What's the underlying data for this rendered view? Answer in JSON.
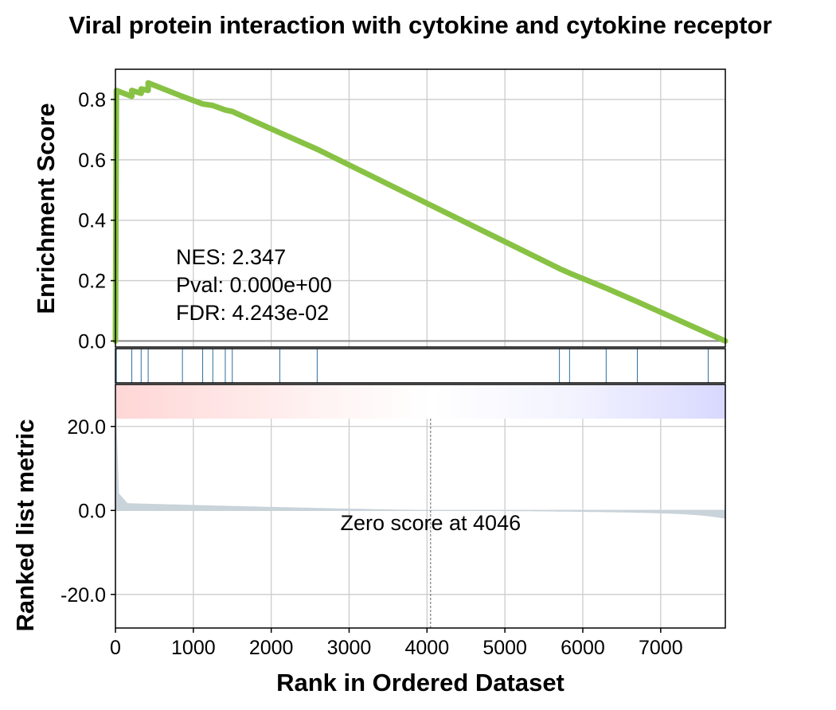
{
  "chart_data": {
    "type": "line",
    "title": "Viral protein interaction with cytokine and cytokine receptor",
    "xlabel": "Rank in Ordered Dataset",
    "ylabel_top": "Enrichment Score",
    "ylabel_bottom": "Ranked list metric",
    "xlim": [
      0,
      7830
    ],
    "xticks": [
      0,
      1000,
      2000,
      3000,
      4000,
      5000,
      6000,
      7000
    ],
    "xtick_labels": [
      "0",
      "1000",
      "2000",
      "3000",
      "4000",
      "5000",
      "6000",
      "7000"
    ],
    "es_ylim": [
      -0.02,
      0.9
    ],
    "es_yticks": [
      0.0,
      0.2,
      0.4,
      0.6,
      0.8
    ],
    "es_ytick_labels": [
      "0.0",
      "0.2",
      "0.4",
      "0.6",
      "0.8"
    ],
    "metric_ylim": [
      -28,
      30
    ],
    "metric_yticks": [
      -20,
      0,
      20
    ],
    "metric_ytick_labels": [
      "-20.0",
      "0.0",
      "20.0"
    ],
    "grid": true,
    "line_color": "#88c244",
    "hit_color": "#2b6f9e",
    "fill_color": "#c9d3da",
    "stats": {
      "nes": "NES: 2.347",
      "pval": "Pval: 0.000e+00",
      "fdr": "FDR: 4.243e-02"
    },
    "zero_score_label": "Zero score at 4046",
    "zero_score_rank": 4046,
    "hits": [
      12,
      210,
      330,
      420,
      860,
      1120,
      1250,
      1410,
      1500,
      2110,
      2590,
      5700,
      5830,
      6300,
      6700,
      7610
    ],
    "series": [
      {
        "values": [
          {
            "x": 0,
            "y": 0.0
          },
          {
            "x": 12,
            "y": 0.83
          },
          {
            "x": 210,
            "y": 0.81
          },
          {
            "x": 210,
            "y": 0.83
          },
          {
            "x": 330,
            "y": 0.82
          },
          {
            "x": 330,
            "y": 0.835
          },
          {
            "x": 420,
            "y": 0.83
          },
          {
            "x": 420,
            "y": 0.855
          },
          {
            "x": 860,
            "y": 0.81
          },
          {
            "x": 1120,
            "y": 0.785
          },
          {
            "x": 1250,
            "y": 0.78
          },
          {
            "x": 1410,
            "y": 0.765
          },
          {
            "x": 1500,
            "y": 0.76
          },
          {
            "x": 2110,
            "y": 0.69
          },
          {
            "x": 2590,
            "y": 0.635
          },
          {
            "x": 5700,
            "y": 0.24
          },
          {
            "x": 5830,
            "y": 0.225
          },
          {
            "x": 6300,
            "y": 0.175
          },
          {
            "x": 6700,
            "y": 0.13
          },
          {
            "x": 7610,
            "y": 0.025
          },
          {
            "x": 7830,
            "y": 0.0
          }
        ]
      }
    ]
  }
}
